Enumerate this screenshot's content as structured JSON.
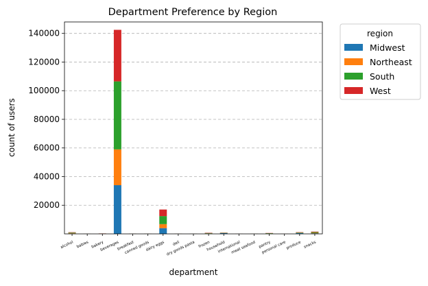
{
  "chart_data": {
    "type": "bar",
    "stacked": true,
    "title": "Department Preference by Region",
    "xlabel": "department",
    "ylabel": "count of users",
    "categories": [
      "alcohol",
      "babies",
      "bakery",
      "beverages",
      "breakfast",
      "canned goods",
      "dairy eggs",
      "deli",
      "dry goods pasta",
      "frozen",
      "household",
      "international",
      "meat seafood",
      "pantry",
      "personal care",
      "produce",
      "snacks"
    ],
    "ylim": [
      0,
      150000
    ],
    "yticks": [
      20000,
      40000,
      60000,
      80000,
      100000,
      120000,
      140000
    ],
    "grid": "y-dashed",
    "series": [
      {
        "name": "Midwest",
        "color": "#1f77b4",
        "values": [
          300,
          30,
          80,
          34000,
          60,
          50,
          4000,
          50,
          40,
          200,
          500,
          30,
          40,
          150,
          20,
          600,
          400
        ]
      },
      {
        "name": "Northeast",
        "color": "#ff7f0e",
        "values": [
          250,
          20,
          60,
          25000,
          40,
          40,
          2800,
          40,
          30,
          150,
          100,
          20,
          30,
          100,
          20,
          150,
          300
        ]
      },
      {
        "name": "South",
        "color": "#2ca02c",
        "values": [
          350,
          40,
          100,
          47500,
          80,
          60,
          5600,
          60,
          50,
          250,
          200,
          40,
          50,
          200,
          30,
          300,
          500
        ]
      },
      {
        "name": "West",
        "color": "#d62728",
        "values": [
          250,
          30,
          70,
          36000,
          60,
          50,
          4600,
          50,
          40,
          200,
          150,
          30,
          40,
          150,
          20,
          200,
          350
        ]
      }
    ],
    "legend": {
      "title": "region",
      "position": "outside-top-right"
    }
  }
}
